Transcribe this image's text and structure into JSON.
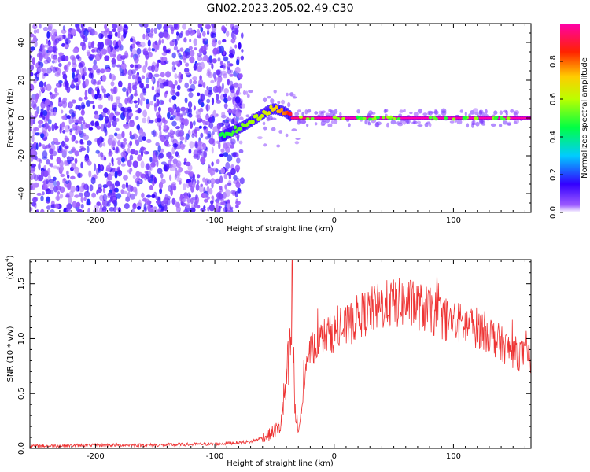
{
  "title": "GN02.2023.205.02.49.C30",
  "chart_data": [
    {
      "type": "heatmap",
      "xlabel": "Height of straight line (km)",
      "ylabel": "Frequency (Hz)",
      "xlim": [
        -255,
        165
      ],
      "ylim": [
        -50,
        50
      ],
      "x_ticks": [
        -200,
        -100,
        0,
        100
      ],
      "y_ticks": [
        -40,
        -20,
        0,
        20,
        40
      ],
      "colorbar": {
        "label": "Normalized spectral amplitude",
        "range": [
          0,
          1
        ],
        "ticks": [
          "0.0",
          "0.2",
          "0.4",
          "0.6",
          "0.8"
        ],
        "tick_values": [
          0,
          0.2,
          0.4,
          0.6,
          0.8
        ]
      },
      "ridge": {
        "x": [
          -95,
          -85,
          -75,
          -65,
          -55,
          -50,
          -45,
          -40,
          -35,
          0,
          100,
          165
        ],
        "frequency": [
          -10,
          -7,
          -4,
          0,
          4,
          5,
          4,
          3,
          0,
          0,
          0,
          0
        ],
        "amplitude": [
          0.45,
          0.5,
          0.55,
          0.6,
          0.65,
          0.7,
          0.75,
          0.8,
          0.95,
          1.0,
          1.0,
          1.0
        ]
      },
      "noise_region_x": [
        -255,
        -85
      ],
      "grid": false
    },
    {
      "type": "line",
      "xlabel": "Height of straight line (km)",
      "ylabel": "SNR (10 * v/v)",
      "y_scale_label": "(x10",
      "y_scale_exp": "4",
      "xlim": [
        -255,
        165
      ],
      "ylim": [
        0,
        17200
      ],
      "x_ticks": [
        -200,
        -100,
        0,
        100
      ],
      "y_ticks": [
        0,
        5000,
        10000,
        15000
      ],
      "y_tick_labels": [
        "0.0",
        "0.5",
        "1.0",
        "1.5"
      ],
      "series": [
        {
          "color": "#ee3333",
          "x": [
            -255,
            -200,
            -150,
            -100,
            -70,
            -55,
            -45,
            -40,
            -37,
            -35,
            -33,
            -30,
            -28,
            -25,
            -20,
            -15,
            -10,
            -5,
            0,
            10,
            20,
            30,
            40,
            50,
            60,
            70,
            80,
            90,
            100,
            110,
            120,
            130,
            140,
            150,
            165
          ],
          "y": [
            200,
            300,
            300,
            400,
            600,
            1200,
            2000,
            6000,
            8000,
            13500,
            3500,
            1500,
            3000,
            6000,
            9000,
            9500,
            10000,
            10500,
            10500,
            11000,
            12000,
            12500,
            13000,
            13200,
            13300,
            13000,
            12500,
            12000,
            11500,
            11200,
            11000,
            10500,
            9500,
            8800,
            8200
          ]
        }
      ],
      "grid": false
    }
  ]
}
